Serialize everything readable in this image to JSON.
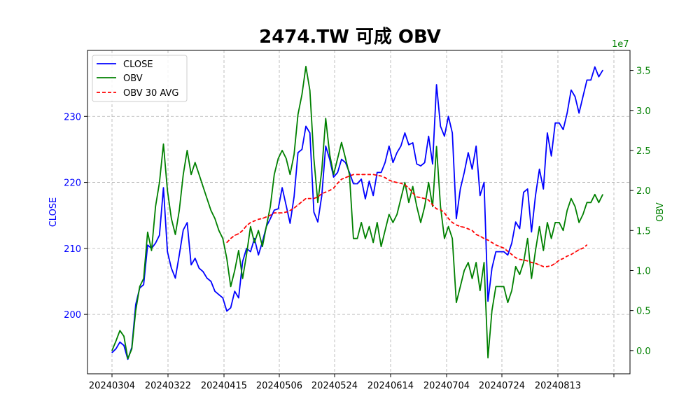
{
  "chart_data": {
    "type": "line",
    "title": "2474.TW 可成 OBV",
    "x_tick_labels": [
      "20240304",
      "20240322",
      "20240415",
      "20240506",
      "20240524",
      "20240614",
      "20240704",
      "20240724",
      "20240813"
    ],
    "left_axis": {
      "label": "CLOSE",
      "ticks": [
        200,
        210,
        220,
        230
      ],
      "ylim": [
        191,
        240
      ],
      "color": "#0000ff"
    },
    "right_axis": {
      "label": "OBV",
      "multiplier": "1e7",
      "ticks": [
        "0.0",
        "0.5",
        "1.0",
        "1.5",
        "2.0",
        "2.5",
        "3.0",
        "3.5"
      ],
      "ylim": [
        -2.9,
        37.5
      ],
      "color": "#008000"
    },
    "grid": true,
    "legend_position": "upper-left",
    "series": [
      {
        "name": "CLOSE",
        "axis": "left",
        "color": "#0000ff",
        "style": "solid",
        "values": [
          194.2,
          194.8,
          195.8,
          195.3,
          193.2,
          195.0,
          201.5,
          204.0,
          204.5,
          210.5,
          210.0,
          210.8,
          212.0,
          219.2,
          209.5,
          207.0,
          205.5,
          209.0,
          212.8,
          213.9,
          207.5,
          208.5,
          207.0,
          206.5,
          205.5,
          205.0,
          203.5,
          203.0,
          202.5,
          200.5,
          201.0,
          203.5,
          202.5,
          208.0,
          210.0,
          209.5,
          211.5,
          209.0,
          211.0,
          213.3,
          214.5,
          215.8,
          216.0,
          219.2,
          216.5,
          213.8,
          217.8,
          224.5,
          225.0,
          228.5,
          227.5,
          215.5,
          214.0,
          218.0,
          225.5,
          223.5,
          220.8,
          221.5,
          223.5,
          223.0,
          221.5,
          219.8,
          219.8,
          220.5,
          217.5,
          220.2,
          218.0,
          221.5,
          221.5,
          223.0,
          225.5,
          223.0,
          224.5,
          225.5,
          227.5,
          225.7,
          226.0,
          222.8,
          222.5,
          223.0,
          227.0,
          222.8,
          234.8,
          228.5,
          227.0,
          230.0,
          227.5,
          214.5,
          219.0,
          221.5,
          224.5,
          222.0,
          225.5,
          218.0,
          220.0,
          202.0,
          207.0,
          209.5,
          209.5,
          209.5,
          209.0,
          210.8,
          214.0,
          213.0,
          218.5,
          219.0,
          212.5,
          218.0,
          222.0,
          219.0,
          227.5,
          224.0,
          229.0,
          229.0,
          228.0,
          230.5,
          234.0,
          233.0,
          230.5,
          233.0,
          235.5,
          235.5,
          237.5,
          236.0,
          237.0
        ]
      },
      {
        "name": "OBV",
        "axis": "right",
        "color": "#008000",
        "style": "solid",
        "values": [
          0.0,
          1.2,
          2.5,
          1.8,
          -1.0,
          0.2,
          5.0,
          8.0,
          9.0,
          14.8,
          12.5,
          18.0,
          21.0,
          25.8,
          20.0,
          16.5,
          14.5,
          17.5,
          22.0,
          25.0,
          22.0,
          23.5,
          22.0,
          20.5,
          19.0,
          17.5,
          16.5,
          15.0,
          14.0,
          11.5,
          8.0,
          10.0,
          12.5,
          9.0,
          12.0,
          15.5,
          13.5,
          15.0,
          13.0,
          15.5,
          18.0,
          22.0,
          24.0,
          25.0,
          24.0,
          22.0,
          24.5,
          29.5,
          32.0,
          35.5,
          32.5,
          24.0,
          18.5,
          22.5,
          29.0,
          24.5,
          22.0,
          24.0,
          26.0,
          24.0,
          22.0,
          14.0,
          14.0,
          16.0,
          14.0,
          15.5,
          13.5,
          16.0,
          13.0,
          15.0,
          17.0,
          16.0,
          17.0,
          19.0,
          21.0,
          18.5,
          20.5,
          18.0,
          16.0,
          18.0,
          21.0,
          18.0,
          25.5,
          18.0,
          14.0,
          15.5,
          14.0,
          6.0,
          8.0,
          10.0,
          11.0,
          9.0,
          11.0,
          7.5,
          11.0,
          -0.9,
          5.0,
          8.0,
          8.0,
          8.0,
          6.0,
          7.5,
          10.5,
          9.5,
          11.0,
          14.0,
          9.0,
          12.5,
          15.5,
          12.5,
          16.0,
          14.0,
          16.0,
          16.0,
          15.0,
          17.5,
          19.0,
          18.0,
          16.0,
          17.0,
          18.5,
          18.5,
          19.5,
          18.5,
          19.5
        ]
      },
      {
        "name": "OBV 30 AVG",
        "axis": "right",
        "color": "#ff0000",
        "style": "dashed",
        "start_index": 29,
        "values": [
          13.5,
          14.0,
          14.4,
          14.6,
          15.0,
          15.6,
          16.0,
          16.2,
          16.4,
          16.5,
          16.7,
          16.9,
          17.2,
          17.2,
          17.2,
          17.3,
          17.5,
          17.8,
          18.2,
          18.6,
          19.0,
          19.0,
          19.0,
          19.2,
          19.6,
          19.8,
          20.0,
          20.3,
          20.9,
          21.4,
          21.6,
          21.8,
          22.0,
          22.0,
          22.0,
          22.0,
          22.0,
          22.0,
          21.9,
          21.8,
          21.6,
          21.3,
          21.1,
          21.0,
          20.9,
          20.7,
          20.3,
          19.7,
          19.2,
          19.1,
          19.0,
          18.8,
          18.2,
          17.7,
          17.6,
          17.2,
          16.5,
          16.0,
          15.7,
          15.5,
          15.4,
          15.2,
          15.0,
          14.5,
          14.3,
          14.0,
          13.8,
          13.5,
          13.2,
          13.0,
          12.8,
          12.4,
          12.0,
          11.6,
          11.4,
          11.3,
          11.2,
          11.0,
          10.9,
          10.7,
          10.5,
          10.5,
          10.6,
          10.9,
          11.3,
          11.5,
          11.8,
          12.0,
          12.3,
          12.6,
          12.8,
          13.2
        ]
      }
    ]
  }
}
